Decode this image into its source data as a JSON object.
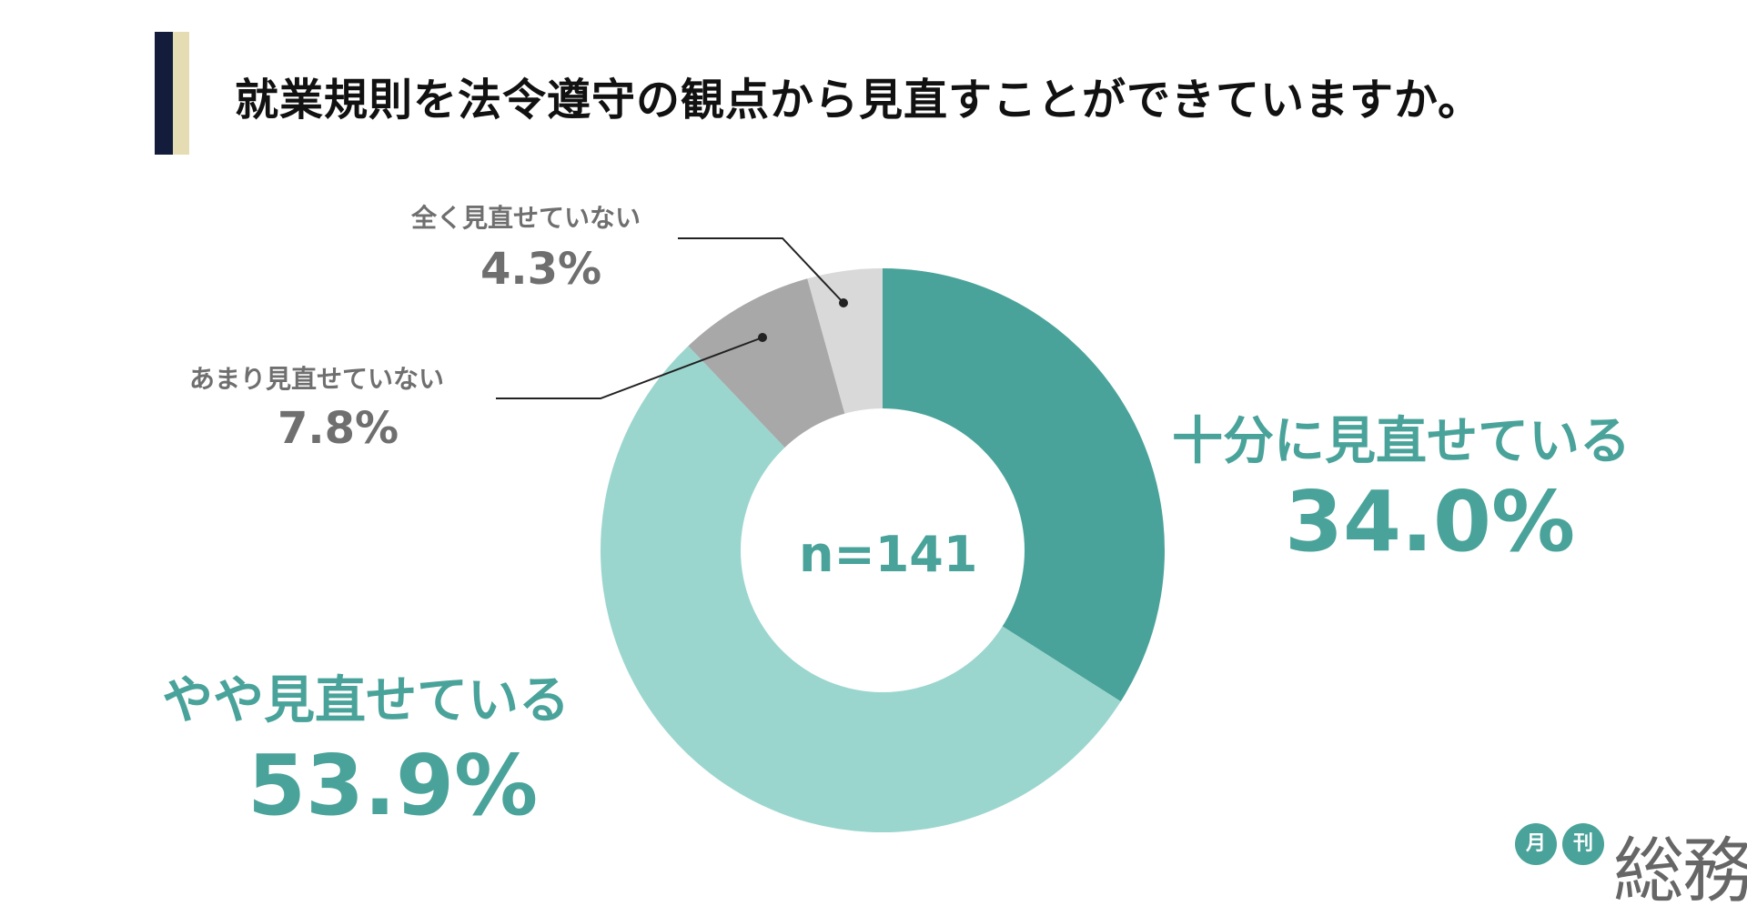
{
  "title": "就業規則を法令遵守の観点から見直すことができていますか。",
  "center_label": "n=141",
  "logo": {
    "small1": "月",
    "small2": "刊",
    "main": "総務"
  },
  "colors": {
    "accent": "#4aa39a",
    "navy": "#141c3c",
    "beige": "#e6dcb4"
  },
  "chart_data": {
    "type": "pie",
    "subtype": "donut",
    "categories": [
      "十分に見直せている",
      "やや見直せている",
      "あまり見直せていない",
      "全く見直せていない"
    ],
    "values": [
      34.0,
      53.9,
      7.8,
      4.3
    ],
    "value_labels": [
      "34.0%",
      "53.9%",
      "7.8%",
      "4.3%"
    ],
    "colors": [
      "#4aa39a",
      "#9bd6ce",
      "#a8a8a8",
      "#d9d9d9"
    ]
  }
}
